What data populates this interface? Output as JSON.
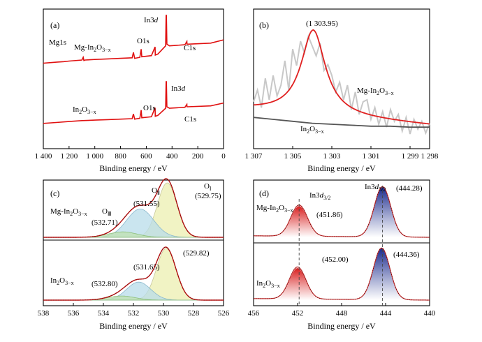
{
  "chart_data": [
    {
      "panel": "(a)",
      "type": "line",
      "xlabel": "Binding energy / eV",
      "xlim": [
        1400,
        0
      ],
      "x_ticks": [
        "1 400",
        "1 200",
        "1 000",
        "800",
        "600",
        "400",
        "200",
        "0"
      ],
      "series": [
        {
          "name": "Mg-In2O3−x",
          "label_main": "Mg-In",
          "label_sub1": "2",
          "label_mid": "O",
          "label_sub2": "3−x",
          "x": [
            1400,
            1300,
            1240,
            1200,
            1100,
            1090,
            1085,
            1075,
            1000,
            900,
            800,
            710,
            700,
            690,
            650,
            640,
            635,
            560,
            532,
            530,
            510,
            450,
            446,
            444,
            440,
            420,
            300,
            285,
            284,
            280,
            100,
            0
          ],
          "y": [
            0.12,
            0.14,
            0.15,
            0.16,
            0.18,
            0.23,
            0.17,
            0.18,
            0.19,
            0.2,
            0.21,
            0.22,
            0.32,
            0.21,
            0.23,
            0.38,
            0.24,
            0.26,
            0.42,
            0.27,
            0.29,
            0.44,
            1.0,
            1.0,
            0.47,
            0.44,
            0.46,
            0.52,
            0.47,
            0.47,
            0.49,
            0.55
          ]
        },
        {
          "name": "In2O3−x",
          "label_main": "In",
          "label_sub1": "2",
          "label_mid": "O",
          "label_sub2": "3−x",
          "x": [
            1400,
            1300,
            1200,
            1100,
            1000,
            900,
            800,
            710,
            700,
            690,
            650,
            640,
            635,
            560,
            532,
            530,
            510,
            450,
            446,
            444,
            440,
            420,
            300,
            285,
            284,
            280,
            100,
            0
          ],
          "y": [
            0.12,
            0.14,
            0.16,
            0.18,
            0.19,
            0.2,
            0.21,
            0.22,
            0.32,
            0.21,
            0.23,
            0.4,
            0.24,
            0.26,
            0.45,
            0.27,
            0.29,
            0.44,
            1.0,
            1.0,
            0.47,
            0.44,
            0.46,
            0.52,
            0.47,
            0.47,
            0.49,
            0.55
          ]
        }
      ],
      "annotations": {
        "mg1s": "Mg1s",
        "o1s": "O1s",
        "c1s": "C1s",
        "in3d_pre": "In3",
        "in3d_it": "d"
      }
    },
    {
      "panel": "(b)",
      "type": "line",
      "xlabel": "Binding energy / eV",
      "xlim": [
        1307,
        1298
      ],
      "x_ticks": [
        "1 307",
        "1 305",
        "1 303",
        "1 301",
        "1 299",
        "1 298"
      ],
      "peak_label": "(1 303.95)",
      "series": [
        {
          "name": "Mg-In2O3−x raw",
          "color": "#c8c8c8",
          "x": [
            1307,
            1306.8,
            1306.6,
            1306.4,
            1306.2,
            1306,
            1305.8,
            1305.6,
            1305.4,
            1305.2,
            1305,
            1304.8,
            1304.6,
            1304.4,
            1304.2,
            1304,
            1303.8,
            1303.6,
            1303.4,
            1303.2,
            1303,
            1302.8,
            1302.6,
            1302.4,
            1302.2,
            1302,
            1301.8,
            1301.6,
            1301.4,
            1301.2,
            1301,
            1300.8,
            1300.6,
            1300.4,
            1300.2,
            1300,
            1299.8,
            1299.6,
            1299.4,
            1299.2,
            1299,
            1298.8,
            1298.6,
            1298.4,
            1298.2,
            1298
          ],
          "y": [
            0.28,
            0.4,
            0.22,
            0.52,
            0.3,
            0.55,
            0.34,
            0.45,
            0.7,
            0.4,
            0.82,
            0.65,
            0.9,
            0.78,
            0.95,
            0.85,
            0.75,
            0.88,
            0.6,
            0.66,
            0.55,
            0.38,
            0.48,
            0.3,
            0.45,
            0.2,
            0.38,
            0.15,
            0.28,
            0.3,
            0.1,
            0.22,
            0.05,
            0.18,
            0.02,
            0.2,
            0.08,
            0.15,
            -0.02,
            0.12,
            -0.05,
            0.1,
            0.0,
            0.08,
            -0.04,
            0.06
          ]
        },
        {
          "name": "Mg-In2O3−x fit",
          "color": "#e02020",
          "center": 1303.95,
          "amp": 0.87,
          "hwhm": 0.75,
          "base": 0.22
        },
        {
          "name": "In2O3−x",
          "color": "#555555",
          "x": [
            1307,
            1306,
            1305,
            1304,
            1303,
            1302,
            1301,
            1300,
            1299,
            1298
          ],
          "y": [
            0.12,
            0.1,
            0.08,
            0.06,
            0.05,
            0.04,
            0.03,
            0.03,
            0.02,
            0.02
          ]
        }
      ],
      "labels": {
        "mg_main": "Mg-In",
        "mg_sub1": "2",
        "mg_mid": "O",
        "mg_sub2": "3−x",
        "in_main": "In",
        "in_sub1": "2",
        "in_mid": "O",
        "in_sub2": "3−x"
      }
    },
    {
      "panel": "(c)",
      "type": "line",
      "xlabel": "Binding energy / eV",
      "xlim": [
        538,
        526
      ],
      "x_ticks": [
        "538",
        "536",
        "534",
        "532",
        "530",
        "528",
        "526"
      ],
      "top": {
        "name_main": "Mg-In",
        "name_sub1": "2",
        "name_mid": "O",
        "name_sub2": "3−x",
        "peaks": [
          {
            "center": 529.75,
            "label": "(529.75)",
            "tag": "O",
            "tag_sub": "Ⅰ",
            "color": "#ecefb0"
          },
          {
            "center": 531.55,
            "label": "(531.55)",
            "tag": "O",
            "tag_sub": "Ⅱ",
            "color": "#b8dcea"
          },
          {
            "center": 532.71,
            "label": "(532.71)",
            "tag": "O",
            "tag_sub": "Ⅲ",
            "color": "#bfe0b0"
          }
        ],
        "amps": [
          1.0,
          0.52,
          0.1
        ],
        "widths": [
          0.65,
          0.9,
          0.95
        ]
      },
      "bottom": {
        "name_main": "In",
        "name_sub1": "2",
        "name_mid": "O",
        "name_sub2": "3−x",
        "peaks": [
          {
            "center": 529.82,
            "label": "(529.82)",
            "color": "#ecefb0"
          },
          {
            "center": 531.65,
            "label": "(531.65)",
            "color": "#b8dcea"
          },
          {
            "center": 532.8,
            "label": "(532.80)",
            "color": "#bfe0b0"
          }
        ],
        "amps": [
          1.0,
          0.35,
          0.08
        ],
        "widths": [
          0.65,
          0.8,
          0.9
        ]
      }
    },
    {
      "panel": "(d)",
      "type": "line",
      "xlabel": "Binding energy / eV",
      "xlim": [
        456,
        440
      ],
      "x_ticks": [
        "456",
        "452",
        "448",
        "444",
        "440"
      ],
      "top": {
        "name_main": "Mg-In",
        "name_sub1": "2",
        "name_mid": "O",
        "name_sub2": "3−x",
        "peaks": [
          {
            "center": 451.86,
            "label": "(451.86)",
            "amp": 0.62,
            "color": "#d81e1e"
          },
          {
            "center": 444.28,
            "label": "(444.28)",
            "amp": 1.0,
            "color": "#1a2a8c"
          }
        ]
      },
      "bottom": {
        "name_main": "In",
        "name_sub1": "2",
        "name_mid": "O",
        "name_sub2": "3−x",
        "peaks": [
          {
            "center": 452.0,
            "label": "(452.00)",
            "amp": 0.62,
            "color": "#d81e1e"
          },
          {
            "center": 444.36,
            "label": "(444.36)",
            "amp": 1.0,
            "color": "#1a2a8c"
          }
        ]
      },
      "labels": {
        "in3d32_pre": "In3",
        "in3d32_it": "d",
        "in3d32_sub": "3/2",
        "in3d52_pre": "In3",
        "in3d52_it": "d",
        "in3d52_sub": "5/2"
      }
    }
  ]
}
